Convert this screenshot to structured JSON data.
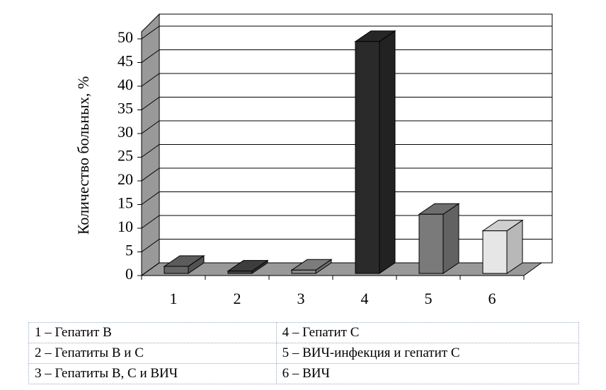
{
  "chart_data": {
    "type": "bar",
    "y_label": "Количество больных, %",
    "categories": [
      "1",
      "2",
      "3",
      "4",
      "5",
      "6"
    ],
    "values": [
      1.5,
      0.5,
      0.7,
      49,
      12.5,
      9
    ],
    "colors": [
      "#666666",
      "#444444",
      "#8a8a8a",
      "#2a2a2a",
      "#7a7a7a",
      "#e6e6e6"
    ],
    "ylim": [
      0,
      50
    ],
    "yticks": [
      0,
      5,
      10,
      15,
      20,
      25,
      30,
      35,
      40,
      45,
      50
    ],
    "grid": true
  },
  "table": {
    "rows": [
      [
        "1 – Гепатит В",
        "4 – Гепатит С"
      ],
      [
        "2 – Гепатиты В и С",
        "5 – ВИЧ-инфекция и гепатит С"
      ],
      [
        "3 – Гепатиты В, С и ВИЧ",
        "6 – ВИЧ"
      ]
    ]
  }
}
